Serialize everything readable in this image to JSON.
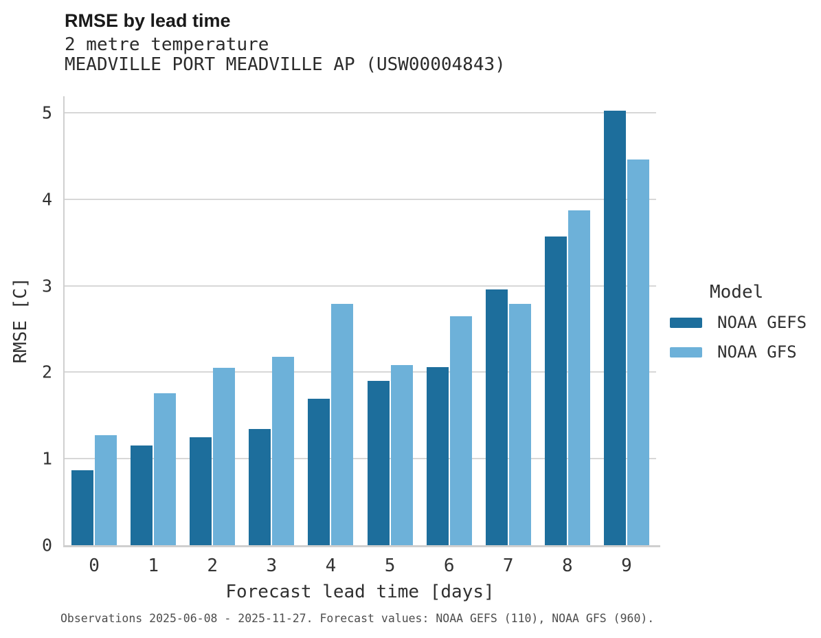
{
  "header": {
    "title": "RMSE by lead time",
    "subtitle": "2 metre temperature",
    "station_line": "MEADVILLE PORT MEADVILLE AP (USW00004843)"
  },
  "footer_caption": "Observations 2025-06-08 - 2025-11-27. Forecast values: NOAA GEFS (110), NOAA GFS (960).",
  "legend": {
    "title": "Model",
    "entries": [
      {
        "label": "NOAA GEFS",
        "color": "#1d6e9c"
      },
      {
        "label": "NOAA GFS",
        "color": "#6db1d9"
      }
    ]
  },
  "colors": {
    "gefs": "#1d6e9c",
    "gfs": "#6db1d9",
    "gridline": "#d7d7d7",
    "spine": "#cfcfcf"
  },
  "chart_data": {
    "type": "bar",
    "title": "RMSE by lead time",
    "subtitle": "2 metre temperature",
    "station": "MEADVILLE PORT MEADVILLE AP (USW00004843)",
    "xlabel": "Forecast lead time [days]",
    "ylabel": "RMSE [C]",
    "categories": [
      "0",
      "1",
      "2",
      "3",
      "4",
      "5",
      "6",
      "7",
      "8",
      "9"
    ],
    "series": [
      {
        "name": "NOAA GEFS",
        "color": "#1d6e9c",
        "values": [
          0.87,
          1.15,
          1.25,
          1.34,
          1.69,
          1.9,
          2.06,
          2.96,
          3.57,
          5.02
        ]
      },
      {
        "name": "NOAA GFS",
        "color": "#6db1d9",
        "values": [
          1.27,
          1.76,
          2.05,
          2.18,
          2.79,
          2.08,
          2.65,
          2.79,
          3.87,
          4.46
        ]
      }
    ],
    "ylim": [
      0,
      5.19
    ],
    "yticks": [
      0,
      1,
      2,
      3,
      4,
      5
    ],
    "grid": true,
    "legend_position": "right",
    "caption": "Observations 2025-06-08 - 2025-11-27. Forecast values: NOAA GEFS (110), NOAA GFS (960)."
  }
}
